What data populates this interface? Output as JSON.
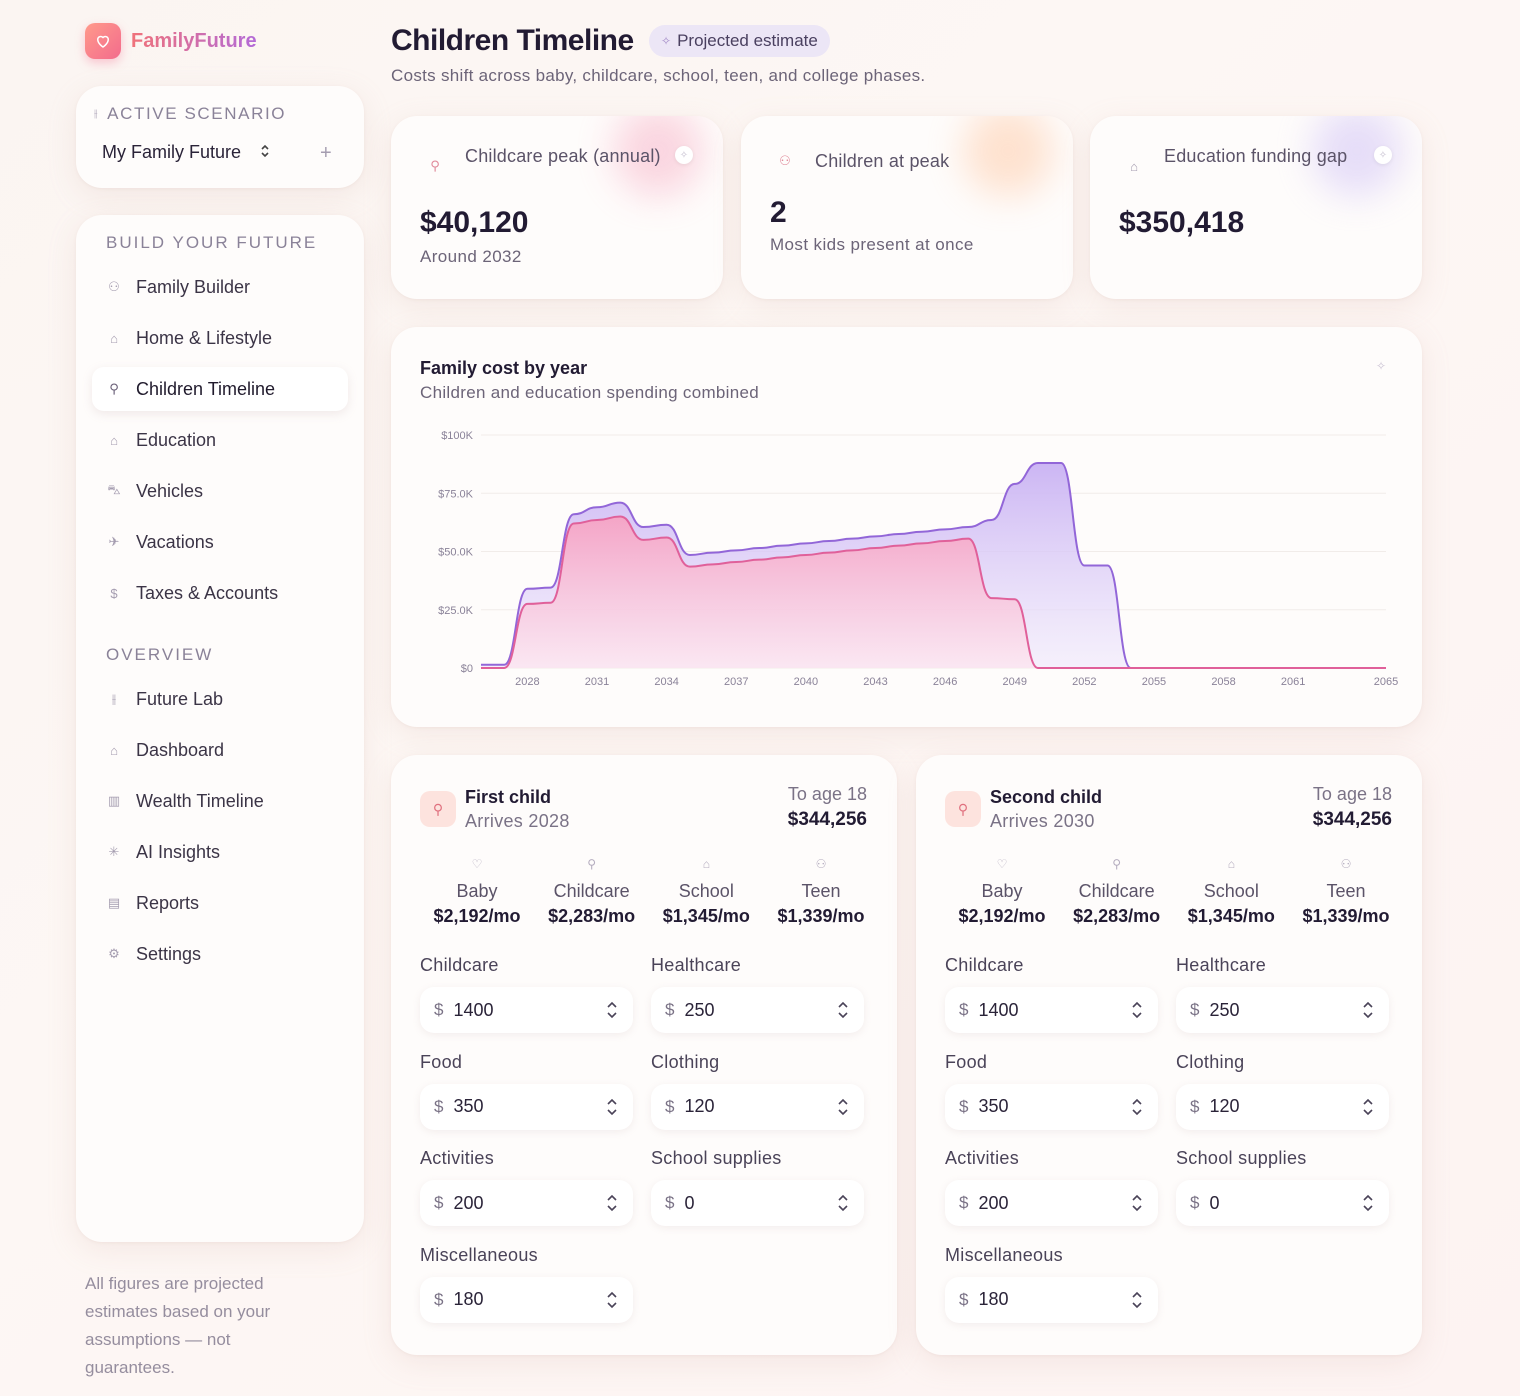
{
  "brand": {
    "name": "FamilyFuture",
    "logo_icon": "heart-icon"
  },
  "scenario": {
    "header": "ACTIVE SCENARIO",
    "selected": "My Family Future",
    "add_label": "+"
  },
  "sidebar": {
    "build_title": "BUILD YOUR FUTURE",
    "build_items": [
      {
        "label": "Family Builder",
        "icon": "people-icon"
      },
      {
        "label": "Home & Lifestyle",
        "icon": "home-icon"
      },
      {
        "label": "Children Timeline",
        "icon": "child-icon",
        "active": true
      },
      {
        "label": "Education",
        "icon": "graduation-cap-icon"
      },
      {
        "label": "Vehicles",
        "icon": "car-icon"
      },
      {
        "label": "Vacations",
        "icon": "plane-icon"
      },
      {
        "label": "Taxes & Accounts",
        "icon": "dollar-icon"
      }
    ],
    "overview_title": "OVERVIEW",
    "overview_items": [
      {
        "label": "Future Lab",
        "icon": "sliders-icon"
      },
      {
        "label": "Dashboard",
        "icon": "home-icon"
      },
      {
        "label": "Wealth Timeline",
        "icon": "bar-chart-icon"
      },
      {
        "label": "AI Insights",
        "icon": "sparkle-icon"
      },
      {
        "label": "Reports",
        "icon": "document-icon"
      },
      {
        "label": "Settings",
        "icon": "gear-icon"
      }
    ],
    "disclaimer": "All figures are projected estimates based on your assumptions — not guarantees."
  },
  "header": {
    "title": "Children Timeline",
    "badge": "Projected estimate",
    "subtitle": "Costs shift across baby, childcare, school, teen, and college phases."
  },
  "stats": [
    {
      "label": "Childcare peak (annual)",
      "value": "$40,120",
      "note": "Around 2032",
      "icon": "child-icon",
      "glow": "#f7a8c0"
    },
    {
      "label": "Children at peak",
      "value": "2",
      "note": "Most kids present at once",
      "icon": "people-icon",
      "glow": "#ffc29a"
    },
    {
      "label": "Education funding gap",
      "value": "$350,418",
      "note": "",
      "icon": "graduation-cap-icon",
      "glow": "#c9b8f5"
    }
  ],
  "chart": {
    "title": "Family cost by year",
    "subtitle": "Children and education spending combined"
  },
  "chart_data": {
    "type": "area",
    "ylim": [
      0,
      100000
    ],
    "y_ticks": [
      "$0",
      "$25.0K",
      "$50.0K",
      "$75.0K",
      "$100K"
    ],
    "x_ticks": [
      "2028",
      "2031",
      "2034",
      "2037",
      "2040",
      "2043",
      "2046",
      "2049",
      "2052",
      "2055",
      "2058",
      "2061",
      "2065"
    ],
    "colors": {
      "children": "#e0609a",
      "total": "#9266d8"
    },
    "x": [
      2026,
      2027,
      2028,
      2029,
      2030,
      2031,
      2032,
      2033,
      2034,
      2035,
      2036,
      2037,
      2038,
      2039,
      2040,
      2041,
      2042,
      2043,
      2044,
      2045,
      2046,
      2047,
      2048,
      2049,
      2050,
      2051,
      2052,
      2053,
      2054,
      2055,
      2056,
      2057,
      2058,
      2059,
      2060,
      2061,
      2062,
      2063,
      2064,
      2065
    ],
    "series": [
      {
        "values": [
          1400,
          1400,
          34000,
          34500,
          66000,
          69000,
          71000,
          60500,
          61500,
          48500,
          49500,
          50500,
          51500,
          52500,
          53500,
          54500,
          55500,
          56500,
          57500,
          58500,
          59500,
          60500,
          63500,
          79000,
          88000,
          88000,
          44000,
          44000,
          0,
          0,
          0,
          0,
          0,
          0,
          0,
          0,
          0,
          0,
          0,
          0
        ]
      },
      {
        "values": [
          0,
          0,
          27500,
          28000,
          62000,
          63500,
          65000,
          55000,
          56000,
          43500,
          44500,
          45500,
          46500,
          47500,
          48500,
          49500,
          50500,
          51500,
          52500,
          53500,
          54500,
          55500,
          30000,
          29500,
          0,
          0,
          0,
          0,
          0,
          0,
          0,
          0,
          0,
          0,
          0,
          0,
          0,
          0,
          0,
          0
        ]
      }
    ]
  },
  "children": [
    {
      "name": "First child",
      "arrives": "Arrives 2028",
      "to_age": "To age 18",
      "total": "$344,256",
      "phases": [
        {
          "name": "Baby",
          "value": "$2,192/mo",
          "icon": "heart-icon"
        },
        {
          "name": "Childcare",
          "value": "$2,283/mo",
          "icon": "child-icon"
        },
        {
          "name": "School",
          "value": "$1,345/mo",
          "icon": "graduation-cap-icon"
        },
        {
          "name": "Teen",
          "value": "$1,339/mo",
          "icon": "people-icon"
        }
      ],
      "fields": [
        {
          "label": "Childcare",
          "value": "1400"
        },
        {
          "label": "Healthcare",
          "value": "250"
        },
        {
          "label": "Food",
          "value": "350"
        },
        {
          "label": "Clothing",
          "value": "120"
        },
        {
          "label": "Activities",
          "value": "200"
        },
        {
          "label": "School supplies",
          "value": "0"
        },
        {
          "label": "Miscellaneous",
          "value": "180"
        }
      ]
    },
    {
      "name": "Second child",
      "arrives": "Arrives 2030",
      "to_age": "To age 18",
      "total": "$344,256",
      "phases": [
        {
          "name": "Baby",
          "value": "$2,192/mo",
          "icon": "heart-icon"
        },
        {
          "name": "Childcare",
          "value": "$2,283/mo",
          "icon": "child-icon"
        },
        {
          "name": "School",
          "value": "$1,345/mo",
          "icon": "graduation-cap-icon"
        },
        {
          "name": "Teen",
          "value": "$1,339/mo",
          "icon": "people-icon"
        }
      ],
      "fields": [
        {
          "label": "Childcare",
          "value": "1400"
        },
        {
          "label": "Healthcare",
          "value": "250"
        },
        {
          "label": "Food",
          "value": "350"
        },
        {
          "label": "Clothing",
          "value": "120"
        },
        {
          "label": "Activities",
          "value": "200"
        },
        {
          "label": "School supplies",
          "value": "0"
        },
        {
          "label": "Miscellaneous",
          "value": "180"
        }
      ]
    }
  ],
  "currency_symbol": "$"
}
